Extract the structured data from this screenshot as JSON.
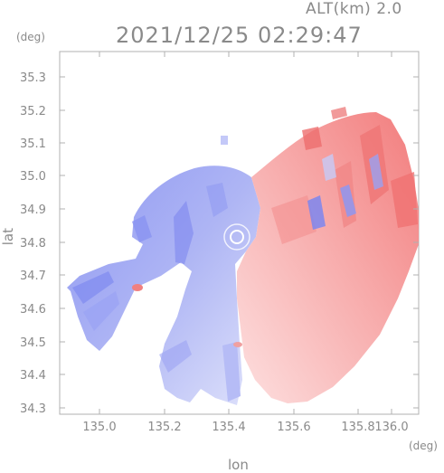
{
  "header": {
    "altitude_label": "ALT(km) 2.0",
    "timestamp": "2021/12/25 02:29:47"
  },
  "axes": {
    "y_unit": "(deg)",
    "x_unit": "(deg)",
    "y_label": "lat",
    "x_label": "lon",
    "y_ticks": [
      "35.3",
      "35.2",
      "35.1",
      "35.0",
      "34.9",
      "34.8",
      "34.7",
      "34.6",
      "34.5",
      "34.4",
      "34.3"
    ],
    "x_ticks": [
      "135.0",
      "135.2",
      "135.4",
      "135.6",
      "135.8",
      "136.0"
    ]
  },
  "map": {
    "type": "doppler-velocity-field",
    "colors": {
      "toward": "#7a86f0",
      "away": "#f07a7a",
      "frame": "#b0b0b0"
    }
  }
}
